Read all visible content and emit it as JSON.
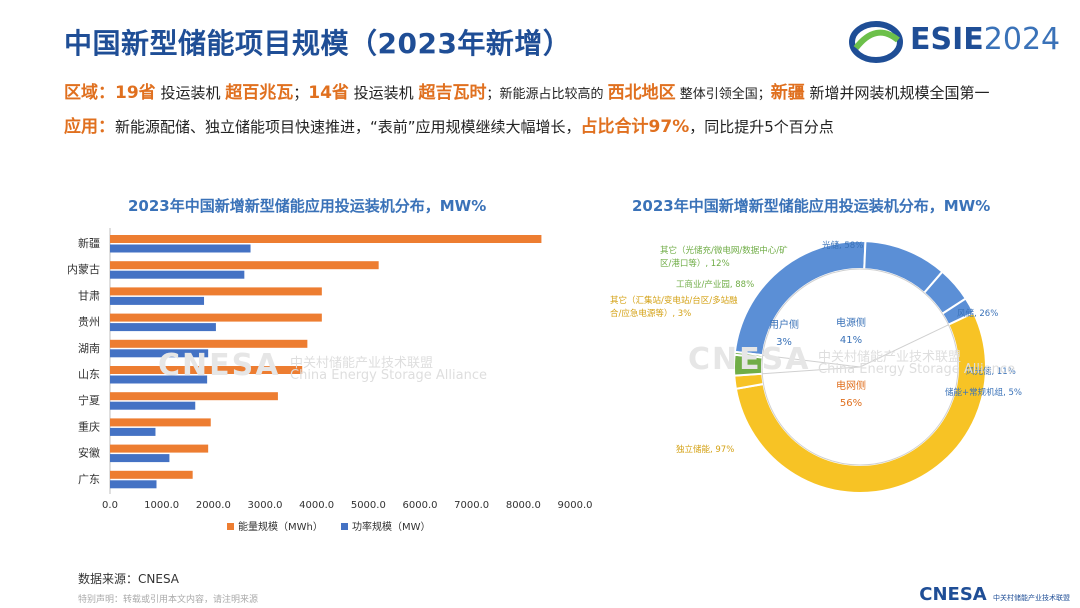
{
  "header": {
    "title": "中国新型储能项目规模（2023年新增）",
    "logo_main": "ESIE",
    "logo_year": "2024"
  },
  "summary": {
    "line1": {
      "label": "区域：",
      "p1_hl": "19省",
      "p1": " 投运装机 ",
      "p2_hl": "超百兆瓦",
      "p2": "；",
      "p3_hl": "14省",
      "p3": " 投运装机 ",
      "p4_hl": "超吉瓦时",
      "p4": "；新能源占比较高的 ",
      "p5_hl": "西北地区",
      "p5": " 整体引领全国；",
      "p6_hl": "新疆",
      "p6": " 新增并网装机规模全国第一"
    },
    "line2": {
      "label": "应用：",
      "p1": "新能源配储、独立储能项目快速推进，“表前”应用规模继续大幅增长，",
      "p2_hl": "占比合计97%",
      "p3": "，同比提升5个百分点"
    }
  },
  "watermark": {
    "main": "CNESA",
    "cn": "中关村储能产业技术联盟",
    "en": "China Energy Storage Alliance"
  },
  "chart_data": [
    {
      "type": "bar",
      "orientation": "horizontal",
      "title": "2023年中国新增新型储能应用投运装机分布，MW%",
      "categories": [
        "新疆",
        "内蒙古",
        "甘肃",
        "贵州",
        "湖南",
        "山东",
        "宁夏",
        "重庆",
        "安徽",
        "广东"
      ],
      "series": [
        {
          "name": "能量规模（MWh）",
          "color": "#ed7d31",
          "values": [
            8350,
            5200,
            4100,
            4100,
            3820,
            3720,
            3250,
            1950,
            1900,
            1600
          ]
        },
        {
          "name": "功率规模（MW）",
          "color": "#4472c4",
          "values": [
            2720,
            2600,
            1820,
            2050,
            1900,
            1880,
            1650,
            880,
            1150,
            900
          ]
        }
      ],
      "xlim": [
        0,
        9000
      ],
      "xticks": [
        "0.0",
        "1000.0",
        "2000.0",
        "3000.0",
        "4000.0",
        "5000.0",
        "6000.0",
        "7000.0",
        "8000.0",
        "9000.0"
      ],
      "legend_position": "bottom",
      "grid": false
    },
    {
      "type": "pie",
      "donut": true,
      "title": "2023年中国新增新型储能应用投运装机分布，MW%",
      "inner_ring": [
        {
          "name": "电源侧",
          "pct": "41%",
          "value": 41,
          "color": "#ffffff"
        },
        {
          "name": "电网侧",
          "pct": "56%",
          "value": 56,
          "color": "#ffffff"
        },
        {
          "name": "用户侧",
          "pct": "3%",
          "value": 3,
          "color": "#ffffff"
        }
      ],
      "outer_ring": [
        {
          "label": "光储, 58%",
          "group": "电源侧",
          "value": 23.78,
          "color": "#5b8fd6"
        },
        {
          "label": "风储, 26%",
          "group": "电源侧",
          "value": 10.66,
          "color": "#5b8fd6"
        },
        {
          "label": "风光储, 11%",
          "group": "电源侧",
          "value": 4.51,
          "color": "#5b8fd6"
        },
        {
          "label": "储能+常规机组, 5%",
          "group": "电源侧",
          "value": 2.05,
          "color": "#5b8fd6"
        },
        {
          "label": "独立储能, 97%",
          "group": "电网侧",
          "value": 54.32,
          "color": "#f7c325"
        },
        {
          "label": "其它（汇集站/变电站/台区/多站融合/应急电源等）, 3%",
          "group": "电网侧",
          "value": 1.68,
          "color": "#f7c325"
        },
        {
          "label": "工商业/产业园, 88%",
          "group": "用户侧",
          "value": 2.64,
          "color": "#70ad47"
        },
        {
          "label": "其它（光储充/微电网/数据中心/矿区/港口等）, 12%",
          "group": "用户侧",
          "value": 0.36,
          "color": "#70ad47"
        }
      ]
    }
  ],
  "footer": {
    "source": "数据来源：CNESA",
    "note": "特别声明：转载或引用本文内容，请注明来源",
    "logo": "CNESA",
    "logo_sub": "中关村储能产业技术联盟"
  }
}
